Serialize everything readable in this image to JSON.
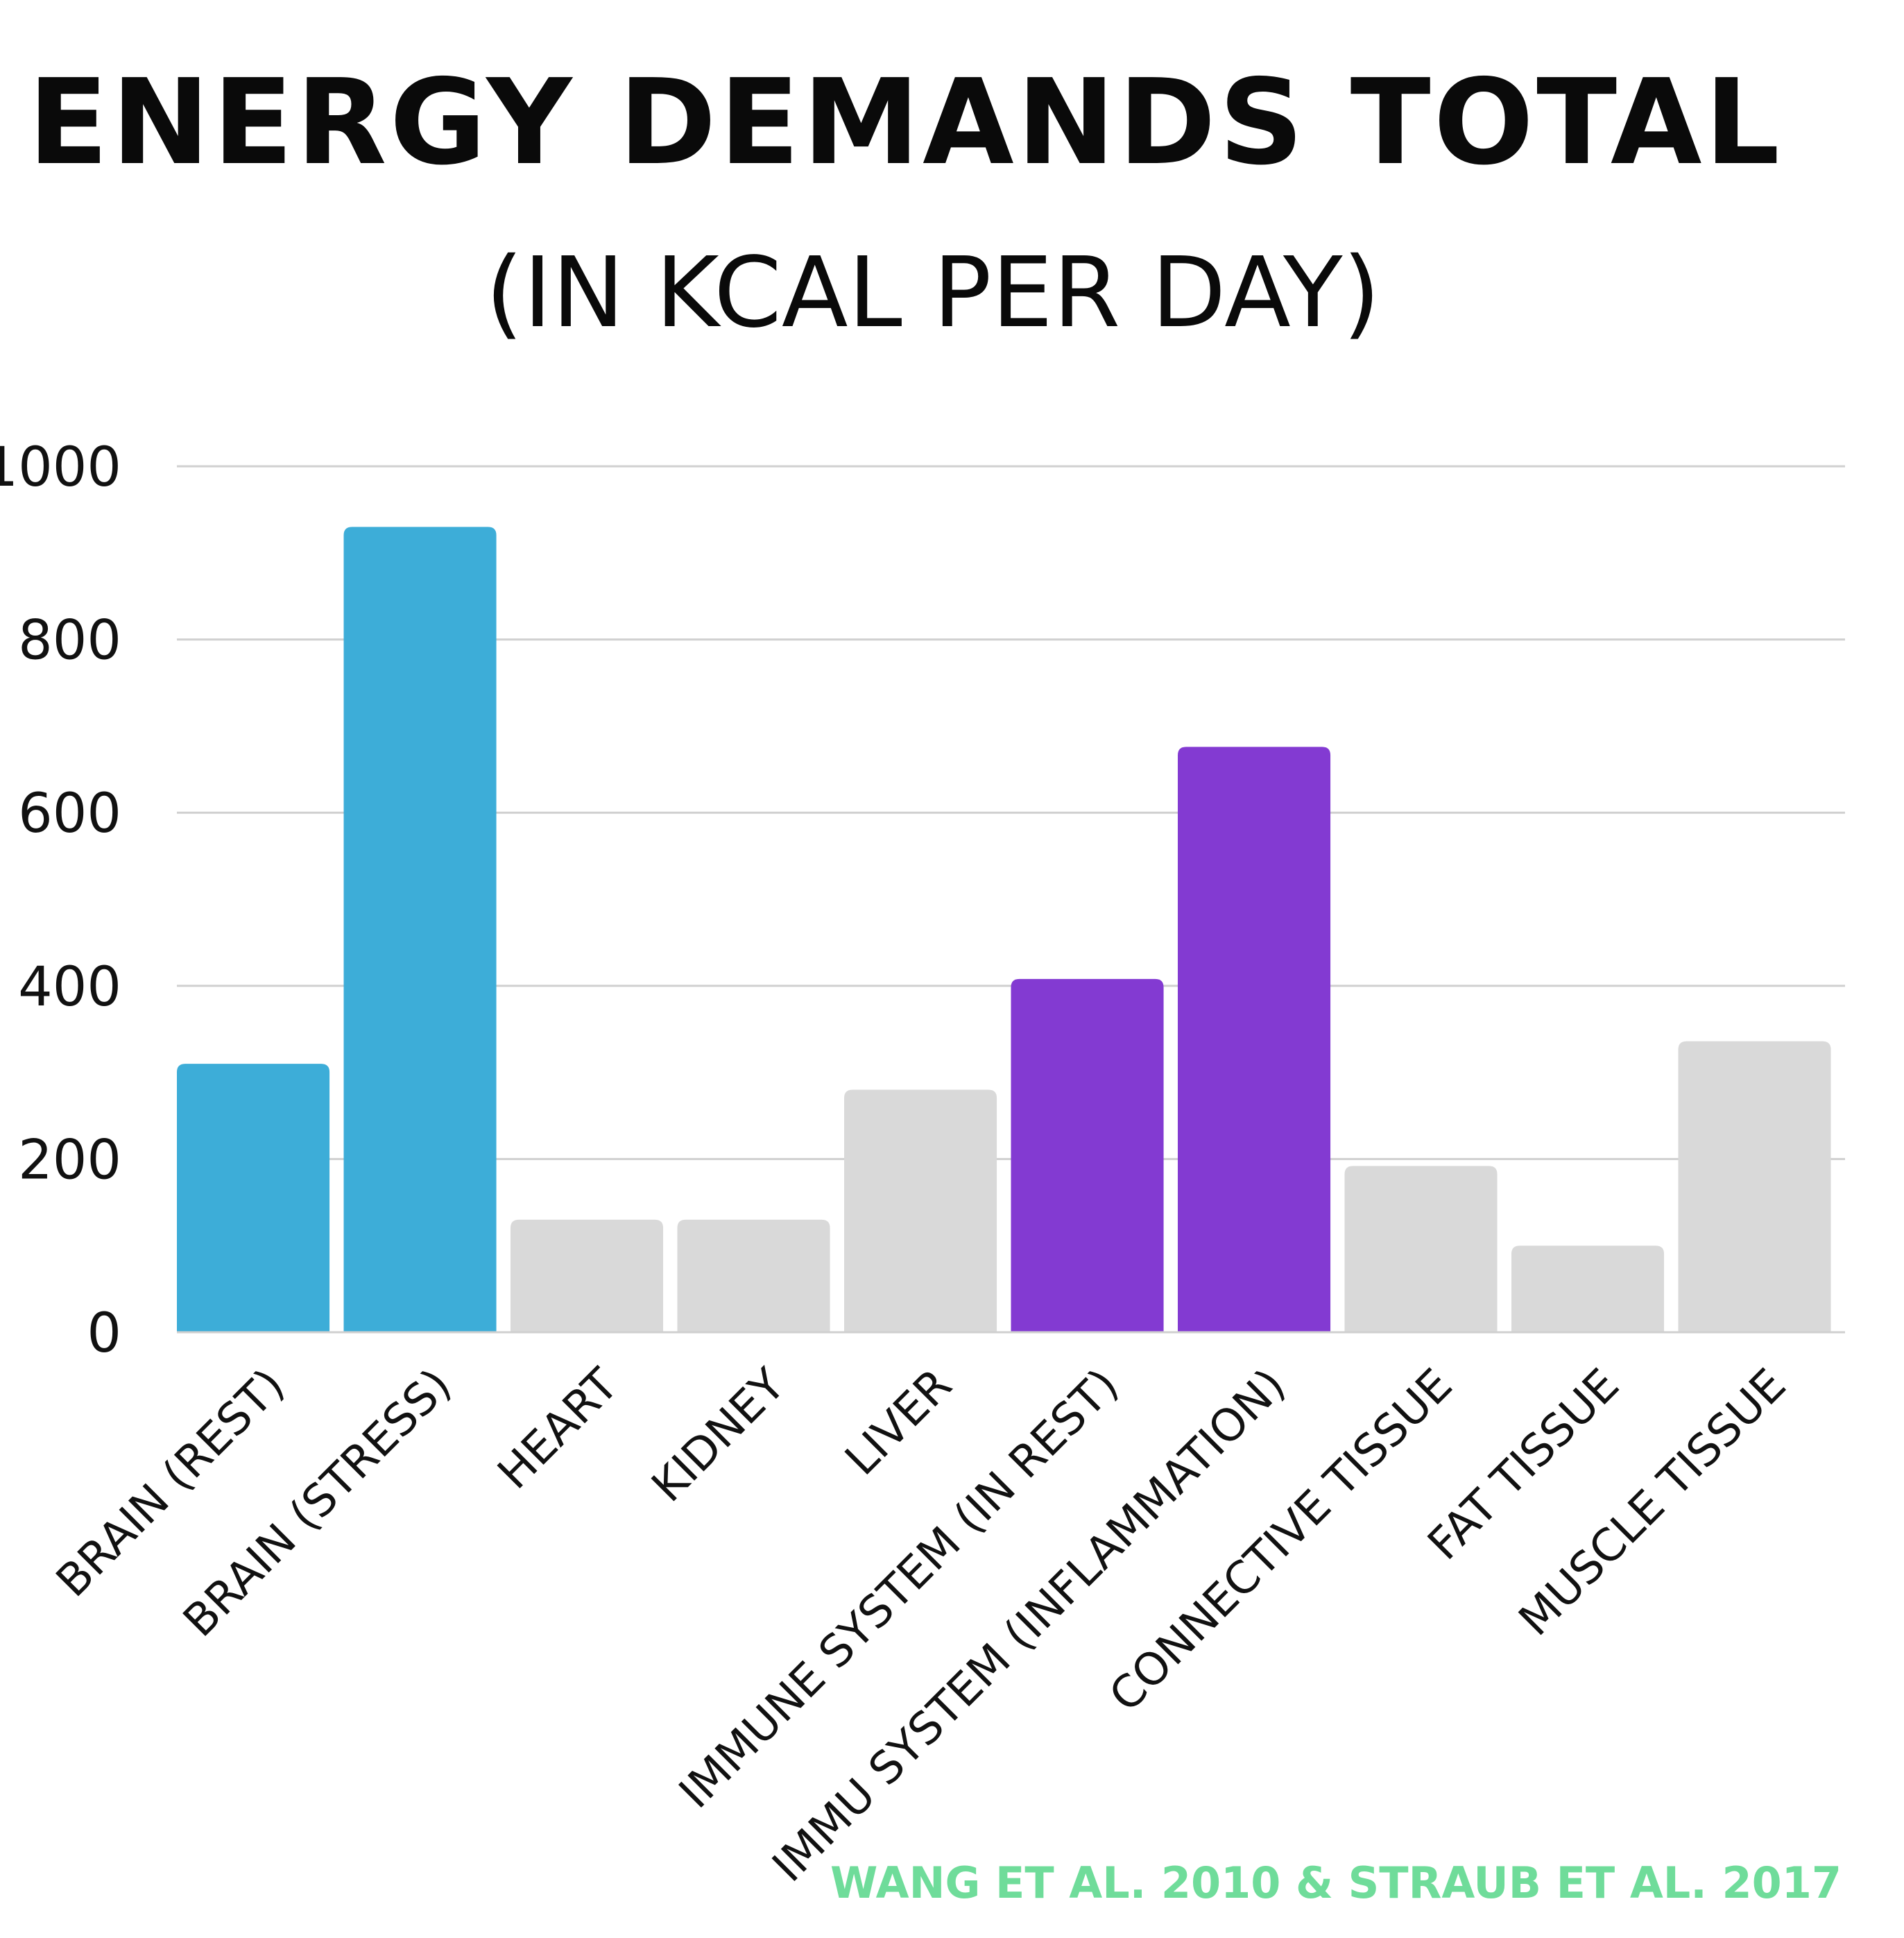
{
  "chart_data": {
    "type": "bar",
    "title": "ENERGY DEMANDS TOTAL",
    "subtitle": "(IN KCAL PER DAY)",
    "xlabel": "",
    "ylabel": "",
    "ylim": [
      0,
      1000
    ],
    "yticks": [
      0,
      200,
      400,
      600,
      800,
      1000
    ],
    "grid": true,
    "categories": [
      "BRAIN (REST)",
      "BRAIN (STRESS)",
      "HEART",
      "KIDNEY",
      "LIVER",
      "IMMUNE SYSTEM (IN REST)",
      "IMMU SYSTEM (INFLAMMATION)",
      "CONNECTIVE TISSUE",
      "FAT TISSUE",
      "MUSCLE TISSUE"
    ],
    "values": [
      310,
      930,
      130,
      130,
      280,
      408,
      676,
      192,
      100,
      336
    ],
    "bar_colors": [
      "#3dadd8",
      "#3dadd8",
      "#d9d9d9",
      "#d9d9d9",
      "#d9d9d9",
      "#833ad2",
      "#833ad2",
      "#d9d9d9",
      "#d9d9d9",
      "#d9d9d9"
    ],
    "source": "WANG ET AL. 2010 & STRAUB ET AL. 2017"
  },
  "colors": {
    "brain": "#3dadd8",
    "immune": "#833ad2",
    "other": "#d9d9d9",
    "grid": "#d0d0d0",
    "source": "#6fdc9a",
    "text": "#0a0a0a"
  }
}
